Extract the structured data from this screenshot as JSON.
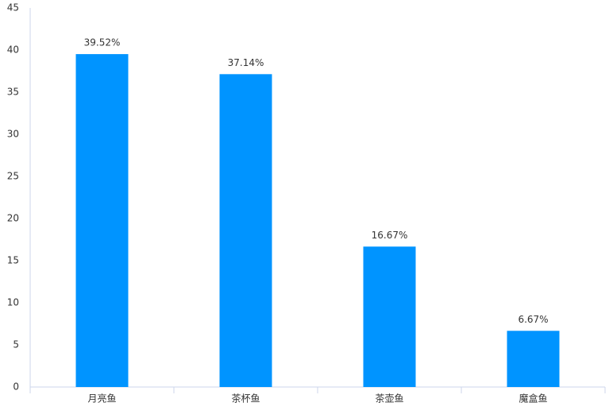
{
  "chart_data": {
    "type": "bar",
    "categories": [
      "月亮鱼",
      "茶杯鱼",
      "茶壶鱼",
      "魔盒鱼"
    ],
    "values": [
      39.52,
      37.14,
      16.67,
      6.67
    ],
    "value_labels": [
      "39.52%",
      "37.14%",
      "16.67%",
      "6.67%"
    ],
    "color": "#0094ff",
    "ylim": [
      0,
      45
    ],
    "yticks": [
      0,
      5,
      10,
      15,
      20,
      25,
      30,
      35,
      40,
      45
    ],
    "grid": false
  }
}
